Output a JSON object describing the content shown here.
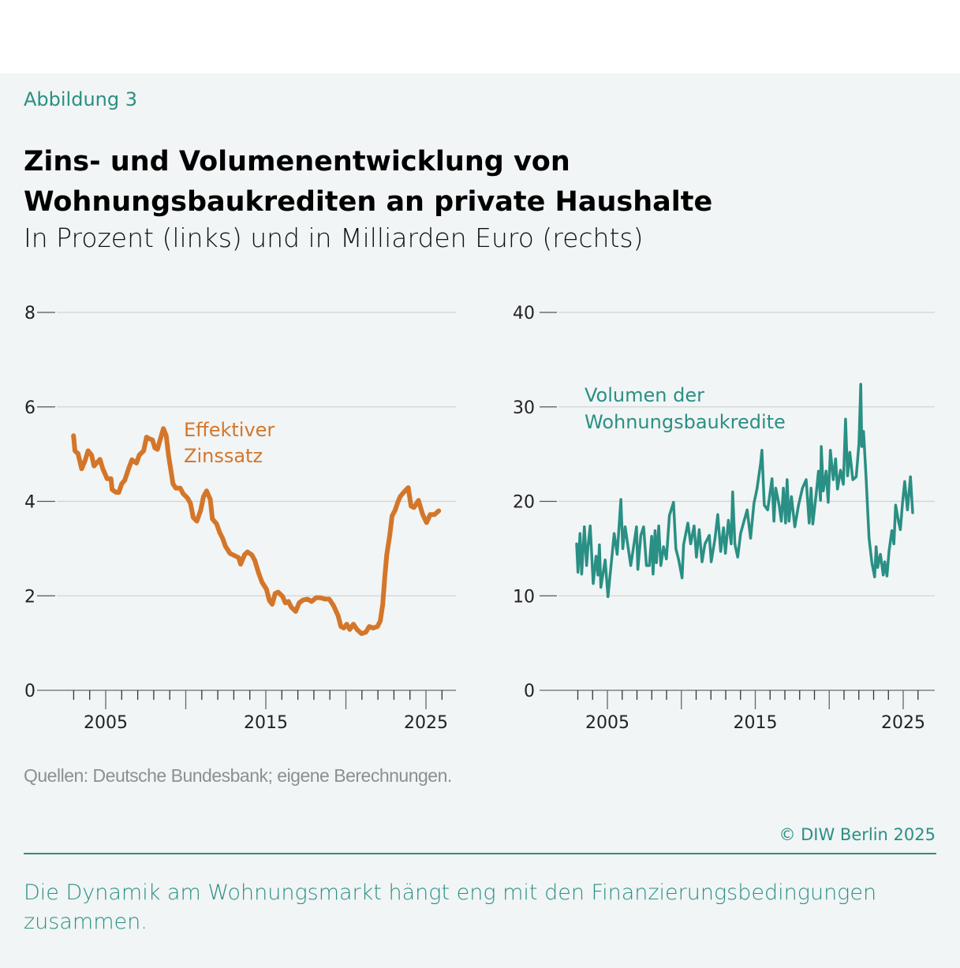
{
  "header": {
    "figure_label": "Abbildung 3",
    "title": "Zins- und Volumenentwicklung von Wohnungsbaukrediten an private Haushalte",
    "subtitle": "In Prozent (links) und in Milliarden Euro (rechts)"
  },
  "footer": {
    "source": "Quellen: Deutsche Bundesbank; eigene Berechnungen.",
    "copyright": "© DIW Berlin 2025",
    "caption": "Die Dynamik am Wohnungsmarkt hängt eng mit den Finanzierungsbedingungen zusammen."
  },
  "colors": {
    "accent": "#2a8f84",
    "interest": "#d4762a",
    "volume": "#2a8f84",
    "grid": "#cfd4d4"
  },
  "chart_data": [
    {
      "type": "line",
      "ylim": [
        0,
        8
      ],
      "yticks": [
        "0",
        "2",
        "4",
        "6",
        "8"
      ],
      "xlim": [
        2001.4,
        2027.3
      ],
      "xticks": [
        "2005",
        "2015",
        "2025"
      ],
      "grid": true,
      "series": [
        {
          "name": "Effektiver Zinssatz",
          "label_lines": [
            "Effektiver",
            "Zinssatz"
          ],
          "color": "#d4762a",
          "points": [
            [
              2002.99,
              5.39
            ],
            [
              2003.08,
              5.07
            ],
            [
              2003.27,
              5.01
            ],
            [
              2003.5,
              4.69
            ],
            [
              2003.72,
              4.87
            ],
            [
              2003.9,
              5.07
            ],
            [
              2004.12,
              4.98
            ],
            [
              2004.27,
              4.75
            ],
            [
              2004.64,
              4.89
            ],
            [
              2004.82,
              4.69
            ],
            [
              2005.09,
              4.48
            ],
            [
              2005.33,
              4.48
            ],
            [
              2005.4,
              4.25
            ],
            [
              2005.64,
              4.19
            ],
            [
              2005.82,
              4.19
            ],
            [
              2006.0,
              4.37
            ],
            [
              2006.19,
              4.45
            ],
            [
              2006.46,
              4.72
            ],
            [
              2006.64,
              4.88
            ],
            [
              2006.92,
              4.81
            ],
            [
              2007.1,
              4.98
            ],
            [
              2007.37,
              5.07
            ],
            [
              2007.55,
              5.36
            ],
            [
              2007.7,
              5.33
            ],
            [
              2007.92,
              5.3
            ],
            [
              2008.07,
              5.13
            ],
            [
              2008.23,
              5.1
            ],
            [
              2008.38,
              5.28
            ],
            [
              2008.6,
              5.54
            ],
            [
              2008.78,
              5.39
            ],
            [
              2008.92,
              4.98
            ],
            [
              2009.1,
              4.6
            ],
            [
              2009.2,
              4.37
            ],
            [
              2009.38,
              4.28
            ],
            [
              2009.65,
              4.28
            ],
            [
              2009.84,
              4.16
            ],
            [
              2010.11,
              4.07
            ],
            [
              2010.29,
              3.96
            ],
            [
              2010.47,
              3.66
            ],
            [
              2010.69,
              3.58
            ],
            [
              2010.93,
              3.81
            ],
            [
              2011.11,
              4.1
            ],
            [
              2011.3,
              4.22
            ],
            [
              2011.53,
              4.04
            ],
            [
              2011.66,
              3.63
            ],
            [
              2011.93,
              3.52
            ],
            [
              2012.12,
              3.34
            ],
            [
              2012.3,
              3.22
            ],
            [
              2012.48,
              3.05
            ],
            [
              2012.76,
              2.9
            ],
            [
              2012.94,
              2.87
            ],
            [
              2013.12,
              2.84
            ],
            [
              2013.3,
              2.81
            ],
            [
              2013.43,
              2.67
            ],
            [
              2013.67,
              2.87
            ],
            [
              2013.85,
              2.93
            ],
            [
              2014.12,
              2.87
            ],
            [
              2014.31,
              2.75
            ],
            [
              2014.54,
              2.49
            ],
            [
              2014.76,
              2.29
            ],
            [
              2015.04,
              2.14
            ],
            [
              2015.22,
              1.9
            ],
            [
              2015.4,
              1.82
            ],
            [
              2015.58,
              2.05
            ],
            [
              2015.77,
              2.08
            ],
            [
              2016.04,
              1.99
            ],
            [
              2016.22,
              1.85
            ],
            [
              2016.41,
              1.88
            ],
            [
              2016.59,
              1.76
            ],
            [
              2016.86,
              1.67
            ],
            [
              2017.08,
              1.85
            ],
            [
              2017.32,
              1.91
            ],
            [
              2017.59,
              1.93
            ],
            [
              2017.86,
              1.88
            ],
            [
              2018.14,
              1.96
            ],
            [
              2018.41,
              1.96
            ],
            [
              2018.69,
              1.93
            ],
            [
              2018.96,
              1.93
            ],
            [
              2019.23,
              1.79
            ],
            [
              2019.51,
              1.58
            ],
            [
              2019.69,
              1.35
            ],
            [
              2019.87,
              1.32
            ],
            [
              2020.05,
              1.4
            ],
            [
              2020.24,
              1.29
            ],
            [
              2020.47,
              1.4
            ],
            [
              2020.69,
              1.29
            ],
            [
              2020.97,
              1.2
            ],
            [
              2021.24,
              1.23
            ],
            [
              2021.46,
              1.35
            ],
            [
              2021.7,
              1.32
            ],
            [
              2021.97,
              1.35
            ],
            [
              2022.15,
              1.47
            ],
            [
              2022.3,
              1.82
            ],
            [
              2022.43,
              2.4
            ],
            [
              2022.55,
              2.87
            ],
            [
              2022.74,
              3.28
            ],
            [
              2022.88,
              3.69
            ],
            [
              2023.07,
              3.81
            ],
            [
              2023.25,
              3.99
            ],
            [
              2023.39,
              4.1
            ],
            [
              2023.61,
              4.19
            ],
            [
              2023.89,
              4.29
            ],
            [
              2024.07,
              3.9
            ],
            [
              2024.25,
              3.87
            ],
            [
              2024.53,
              4.02
            ],
            [
              2024.8,
              3.72
            ],
            [
              2025.04,
              3.55
            ],
            [
              2025.26,
              3.72
            ],
            [
              2025.53,
              3.72
            ],
            [
              2025.8,
              3.8
            ]
          ]
        }
      ]
    },
    {
      "type": "line",
      "ylim": [
        0,
        40
      ],
      "yticks": [
        "0",
        "10",
        "20",
        "30",
        "40"
      ],
      "xlim": [
        2002.0,
        2027.7
      ],
      "xticks": [
        "2005",
        "2015",
        "2025"
      ],
      "grid": true,
      "series": [
        {
          "name": "Volumen der Wohnungsbaukredite",
          "label_lines": [
            "Volumen der",
            "Wohnungsbaukredite"
          ],
          "color": "#2a8f84",
          "points": [
            [
              2002.92,
              15.5
            ],
            [
              2003.01,
              12.5
            ],
            [
              2003.15,
              16.6
            ],
            [
              2003.26,
              12.3
            ],
            [
              2003.44,
              17.3
            ],
            [
              2003.59,
              13.2
            ],
            [
              2003.69,
              15.2
            ],
            [
              2003.84,
              17.4
            ],
            [
              2004.04,
              11.3
            ],
            [
              2004.23,
              14.2
            ],
            [
              2004.36,
              12.2
            ],
            [
              2004.46,
              15.4
            ],
            [
              2004.56,
              10.9
            ],
            [
              2004.85,
              13.8
            ],
            [
              2005.04,
              9.9
            ],
            [
              2005.27,
              13.6
            ],
            [
              2005.46,
              16.6
            ],
            [
              2005.66,
              14.4
            ],
            [
              2005.91,
              20.2
            ],
            [
              2006.04,
              15.0
            ],
            [
              2006.2,
              17.3
            ],
            [
              2006.35,
              15.7
            ],
            [
              2006.58,
              13.2
            ],
            [
              2006.77,
              15.2
            ],
            [
              2006.97,
              17.3
            ],
            [
              2007.06,
              12.8
            ],
            [
              2007.26,
              16.4
            ],
            [
              2007.45,
              17.3
            ],
            [
              2007.64,
              13.2
            ],
            [
              2007.84,
              13.2
            ],
            [
              2007.99,
              16.3
            ],
            [
              2008.09,
              12.3
            ],
            [
              2008.22,
              16.9
            ],
            [
              2008.32,
              13.5
            ],
            [
              2008.47,
              17.4
            ],
            [
              2008.61,
              13.2
            ],
            [
              2008.8,
              15.2
            ],
            [
              2008.99,
              13.9
            ],
            [
              2009.19,
              18.5
            ],
            [
              2009.47,
              19.9
            ],
            [
              2009.63,
              15.0
            ],
            [
              2009.82,
              13.8
            ],
            [
              2010.05,
              11.9
            ],
            [
              2010.15,
              15.4
            ],
            [
              2010.44,
              17.7
            ],
            [
              2010.63,
              15.5
            ],
            [
              2010.86,
              17.4
            ],
            [
              2011.02,
              14.1
            ],
            [
              2011.21,
              17.0
            ],
            [
              2011.4,
              13.6
            ],
            [
              2011.6,
              15.5
            ],
            [
              2011.89,
              16.4
            ],
            [
              2012.02,
              13.6
            ],
            [
              2012.27,
              16.0
            ],
            [
              2012.46,
              18.6
            ],
            [
              2012.66,
              14.7
            ],
            [
              2012.85,
              17.2
            ],
            [
              2012.98,
              14.5
            ],
            [
              2013.18,
              18.0
            ],
            [
              2013.37,
              15.5
            ],
            [
              2013.47,
              21.0
            ],
            [
              2013.62,
              15.5
            ],
            [
              2013.81,
              14.1
            ],
            [
              2014.01,
              16.6
            ],
            [
              2014.2,
              17.7
            ],
            [
              2014.45,
              19.1
            ],
            [
              2014.68,
              16.1
            ],
            [
              2014.91,
              19.8
            ],
            [
              2015.11,
              21.3
            ],
            [
              2015.36,
              24.0
            ],
            [
              2015.45,
              25.4
            ],
            [
              2015.61,
              19.6
            ],
            [
              2015.84,
              19.1
            ],
            [
              2016.13,
              22.4
            ],
            [
              2016.26,
              17.9
            ],
            [
              2016.38,
              21.4
            ],
            [
              2016.61,
              19.6
            ],
            [
              2016.76,
              17.9
            ],
            [
              2016.9,
              21.4
            ],
            [
              2017.05,
              17.7
            ],
            [
              2017.15,
              22.3
            ],
            [
              2017.28,
              17.9
            ],
            [
              2017.44,
              20.5
            ],
            [
              2017.67,
              17.3
            ],
            [
              2017.92,
              19.6
            ],
            [
              2018.19,
              21.4
            ],
            [
              2018.44,
              22.3
            ],
            [
              2018.64,
              17.7
            ],
            [
              2018.77,
              21.4
            ],
            [
              2018.89,
              17.6
            ],
            [
              2019.12,
              20.8
            ],
            [
              2019.27,
              23.2
            ],
            [
              2019.41,
              20.1
            ],
            [
              2019.46,
              25.8
            ],
            [
              2019.6,
              21.1
            ],
            [
              2019.79,
              23.2
            ],
            [
              2019.93,
              19.9
            ],
            [
              2020.08,
              25.4
            ],
            [
              2020.27,
              22.3
            ],
            [
              2020.43,
              24.5
            ],
            [
              2020.56,
              21.3
            ],
            [
              2020.76,
              23.3
            ],
            [
              2020.95,
              21.8
            ],
            [
              2021.1,
              28.7
            ],
            [
              2021.24,
              22.7
            ],
            [
              2021.39,
              25.2
            ],
            [
              2021.59,
              22.3
            ],
            [
              2021.82,
              22.6
            ],
            [
              2022.01,
              26.1
            ],
            [
              2022.13,
              32.4
            ],
            [
              2022.2,
              25.8
            ],
            [
              2022.32,
              27.4
            ],
            [
              2022.49,
              22.6
            ],
            [
              2022.69,
              16.1
            ],
            [
              2022.88,
              13.5
            ],
            [
              2023.07,
              12.0
            ],
            [
              2023.17,
              15.2
            ],
            [
              2023.27,
              13.0
            ],
            [
              2023.46,
              14.4
            ],
            [
              2023.65,
              12.2
            ],
            [
              2023.75,
              13.6
            ],
            [
              2023.9,
              12.1
            ],
            [
              2024.04,
              14.7
            ],
            [
              2024.23,
              16.9
            ],
            [
              2024.37,
              15.5
            ],
            [
              2024.49,
              19.6
            ],
            [
              2024.68,
              17.9
            ],
            [
              2024.81,
              17.0
            ],
            [
              2024.95,
              19.8
            ],
            [
              2025.1,
              22.1
            ],
            [
              2025.29,
              19.1
            ],
            [
              2025.49,
              22.6
            ],
            [
              2025.64,
              18.8
            ]
          ]
        }
      ]
    }
  ]
}
